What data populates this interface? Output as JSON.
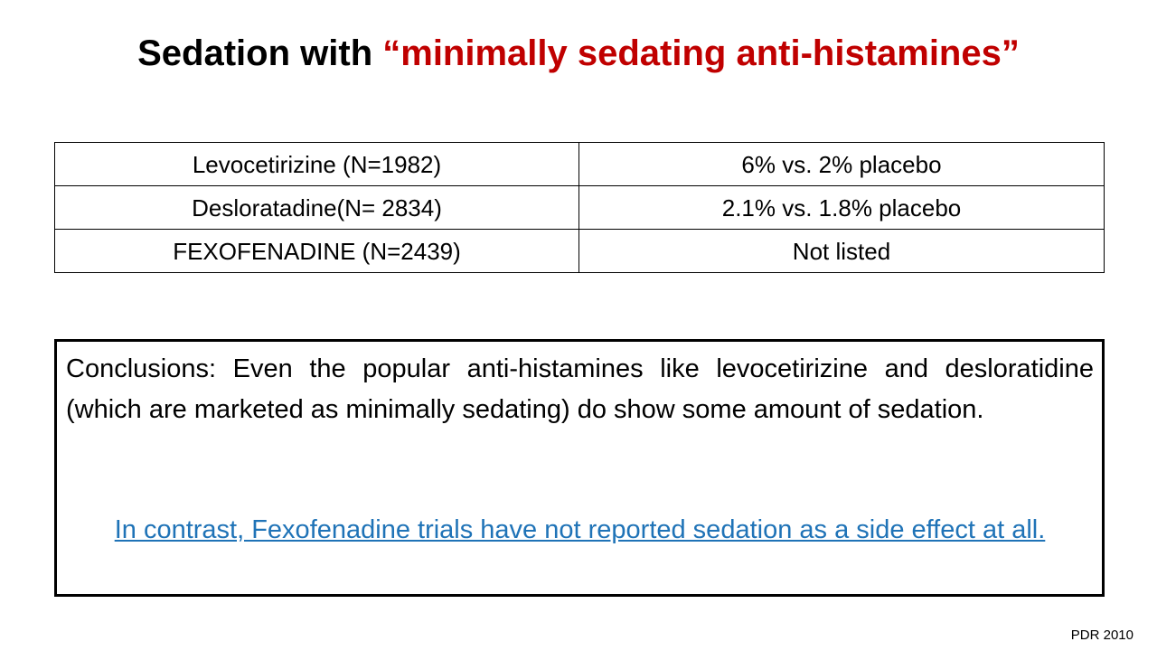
{
  "title": {
    "prefix": "Sedation with ",
    "accent": "“minimally sedating anti-histamines”",
    "accent_color": "#c00000"
  },
  "table": {
    "rows": [
      {
        "drug": "Levocetirizine (N=1982)",
        "result": "6% vs. 2% placebo"
      },
      {
        "drug": "Desloratadine(N= 2834)",
        "result": "2.1% vs. 1.8% placebo"
      },
      {
        "drug": "FEXOFENADINE (N=2439)",
        "result": "Not listed"
      }
    ]
  },
  "conclusion": {
    "text": "Conclusions: Even the popular anti-histamines like levocetirizine and desloratidine (which are marketed as minimally sedating) do show some amount of sedation.",
    "contrast": "In contrast, Fexofenadine trials have not reported sedation as a side effect at all.",
    "contrast_color": "#1f73b7"
  },
  "source": "PDR 2010"
}
